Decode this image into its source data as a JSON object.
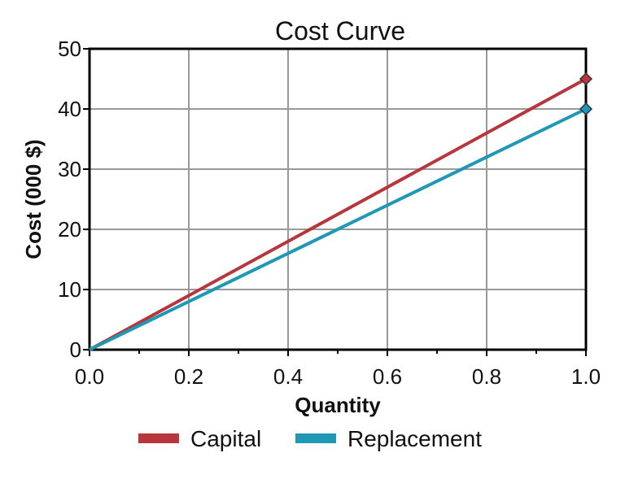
{
  "chart_data": {
    "type": "line",
    "title": "Cost Curve",
    "xlabel": "Quantity",
    "ylabel": "Cost (000 $)",
    "xlim": [
      0,
      1
    ],
    "ylim": [
      0,
      50
    ],
    "xticks": [
      "0.0",
      "0.2",
      "0.4",
      "0.6",
      "0.8",
      "1.0"
    ],
    "yticks": [
      "0",
      "10",
      "20",
      "30",
      "40",
      "50"
    ],
    "grid": true,
    "legend_position": "bottom",
    "series": [
      {
        "name": "Capital",
        "color": "#b7363c",
        "x": [
          0,
          1
        ],
        "y": [
          0,
          45
        ]
      },
      {
        "name": "Replacement",
        "color": "#1f98b6",
        "x": [
          0,
          1
        ],
        "y": [
          0,
          40
        ]
      }
    ]
  }
}
